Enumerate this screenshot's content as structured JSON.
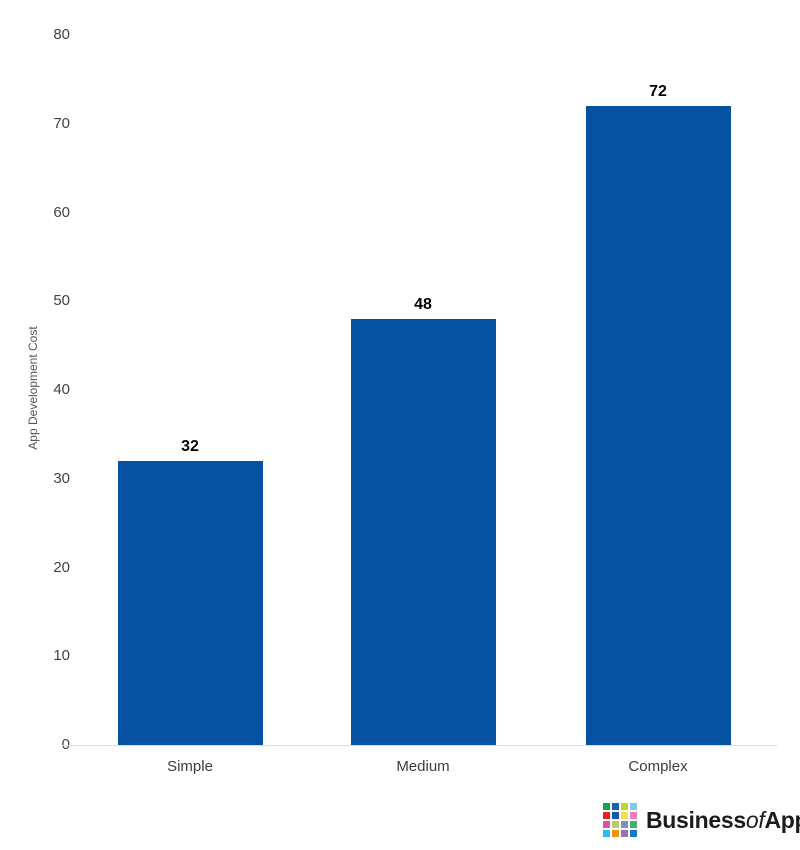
{
  "chart_data": {
    "type": "bar",
    "title": "",
    "categories": [
      "Simple",
      "Medium",
      "Complex"
    ],
    "values": [
      32,
      48,
      72
    ],
    "data_labels": [
      "32",
      "48",
      "72"
    ],
    "xlabel": "",
    "ylabel": "App Development Cost",
    "ylim": [
      0,
      80
    ],
    "yticks": [
      0,
      10,
      20,
      30,
      40,
      50,
      60,
      70,
      80
    ],
    "bar_color": "#0652a2",
    "axis_line_color": "#dcdcdc",
    "tick_label_color": "#424242",
    "grid": false,
    "legend": "none"
  },
  "branding": {
    "part1": "Business",
    "part2": "of",
    "part3": "Apps",
    "text_color": "#1c1c1c",
    "icon_name": "businessofapps-grid-icon",
    "icon_colors": [
      "#12a35b",
      "#1663ae",
      "#c3d52c",
      "#82c7ec",
      "#e32227",
      "#1458a8",
      "#f5e04b",
      "#e87fb8",
      "#d9569f",
      "#b8cc6a",
      "#7b8fc7",
      "#43ad72",
      "#2bbcec",
      "#f0920f",
      "#9b6fad",
      "#1479c6"
    ]
  }
}
